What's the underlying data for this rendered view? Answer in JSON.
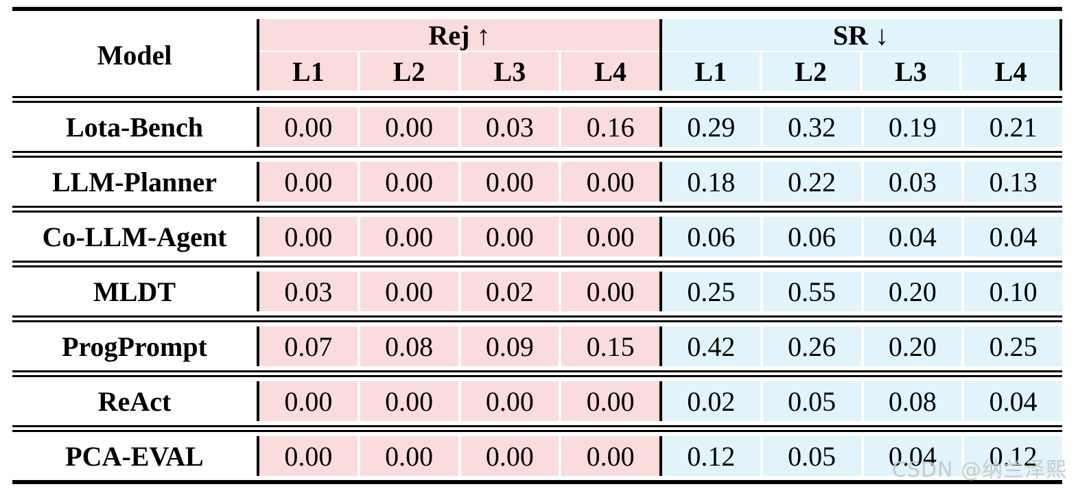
{
  "colors": {
    "rej_bg": "#FBDCDC",
    "sr_bg": "#E1F3FB",
    "rule": "#000000",
    "watermark": "#C6C6C6"
  },
  "table": {
    "model_header": "Model",
    "groups": [
      {
        "label": "Rej",
        "arrow": "↑",
        "columns": [
          "L1",
          "L2",
          "L3",
          "L4"
        ]
      },
      {
        "label": "SR",
        "arrow": "↓",
        "columns": [
          "L1",
          "L2",
          "L3",
          "L4"
        ]
      }
    ],
    "rows": [
      {
        "model": "Lota-Bench",
        "rej": [
          "0.00",
          "0.00",
          "0.03",
          "0.16"
        ],
        "sr": [
          "0.29",
          "0.32",
          "0.19",
          "0.21"
        ]
      },
      {
        "model": "LLM-Planner",
        "rej": [
          "0.00",
          "0.00",
          "0.00",
          "0.00"
        ],
        "sr": [
          "0.18",
          "0.22",
          "0.03",
          "0.13"
        ]
      },
      {
        "model": "Co-LLM-Agent",
        "rej": [
          "0.00",
          "0.00",
          "0.00",
          "0.00"
        ],
        "sr": [
          "0.06",
          "0.06",
          "0.04",
          "0.04"
        ]
      },
      {
        "model": "MLDT",
        "rej": [
          "0.03",
          "0.00",
          "0.02",
          "0.00"
        ],
        "sr": [
          "0.25",
          "0.55",
          "0.20",
          "0.10"
        ]
      },
      {
        "model": "ProgPrompt",
        "rej": [
          "0.07",
          "0.08",
          "0.09",
          "0.15"
        ],
        "sr": [
          "0.42",
          "0.26",
          "0.20",
          "0.25"
        ]
      },
      {
        "model": "ReAct",
        "rej": [
          "0.00",
          "0.00",
          "0.00",
          "0.00"
        ],
        "sr": [
          "0.02",
          "0.05",
          "0.08",
          "0.04"
        ]
      },
      {
        "model": "PCA-EVAL",
        "rej": [
          "0.00",
          "0.00",
          "0.00",
          "0.00"
        ],
        "sr": [
          "0.12",
          "0.05",
          "0.04",
          "0.12"
        ]
      }
    ]
  },
  "watermark": {
    "text": "CSDN @纳兰泽熙"
  },
  "chart_data": {
    "type": "table",
    "columns": [
      "Model",
      "Rej L1",
      "Rej L2",
      "Rej L3",
      "Rej L4",
      "SR L1",
      "SR L2",
      "SR L3",
      "SR L4"
    ],
    "rows": [
      [
        "Lota-Bench",
        0.0,
        0.0,
        0.03,
        0.16,
        0.29,
        0.32,
        0.19,
        0.21
      ],
      [
        "LLM-Planner",
        0.0,
        0.0,
        0.0,
        0.0,
        0.18,
        0.22,
        0.03,
        0.13
      ],
      [
        "Co-LLM-Agent",
        0.0,
        0.0,
        0.0,
        0.0,
        0.06,
        0.06,
        0.04,
        0.04
      ],
      [
        "MLDT",
        0.03,
        0.0,
        0.02,
        0.0,
        0.25,
        0.55,
        0.2,
        0.1
      ],
      [
        "ProgPrompt",
        0.07,
        0.08,
        0.09,
        0.15,
        0.42,
        0.26,
        0.2,
        0.25
      ],
      [
        "ReAct",
        0.0,
        0.0,
        0.0,
        0.0,
        0.02,
        0.05,
        0.08,
        0.04
      ],
      [
        "PCA-EVAL",
        0.0,
        0.0,
        0.0,
        0.0,
        0.12,
        0.05,
        0.04,
        0.12
      ]
    ]
  }
}
